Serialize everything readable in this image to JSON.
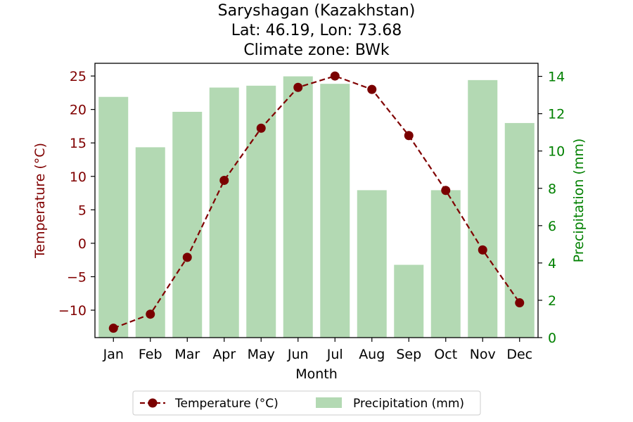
{
  "chart_data": {
    "type": "bar+line",
    "title_lines": [
      "Saryshagan (Kazakhstan)",
      "Lat: 46.19, Lon: 73.68",
      "Climate zone: BWk"
    ],
    "categories": [
      "Jan",
      "Feb",
      "Mar",
      "Apr",
      "May",
      "Jun",
      "Jul",
      "Aug",
      "Sep",
      "Oct",
      "Nov",
      "Dec"
    ],
    "xlabel": "Month",
    "series": [
      {
        "name": "Temperature (°C)",
        "type": "line",
        "axis": "left",
        "color": "#800000",
        "marker_color": "#7a0000",
        "values": [
          -12.7,
          -10.6,
          -2.1,
          9.4,
          17.2,
          23.3,
          25.0,
          23.0,
          16.1,
          7.9,
          -1.0,
          -8.9
        ]
      },
      {
        "name": "Precipitation (mm)",
        "type": "bar",
        "axis": "right",
        "color": "#b3d9b3",
        "values": [
          12.9,
          10.2,
          12.1,
          13.4,
          13.5,
          14.0,
          13.6,
          7.9,
          3.9,
          7.9,
          13.8,
          11.5
        ]
      }
    ],
    "y_left": {
      "label": "Temperature (°C)",
      "color": "#800000",
      "ylim": [
        -14.1,
        26.9
      ],
      "ticks": [
        -10,
        -5,
        0,
        5,
        10,
        15,
        20,
        25
      ],
      "tick_labels": [
        "−10",
        "−5",
        "0",
        "5",
        "10",
        "15",
        "20",
        "25"
      ]
    },
    "y_right": {
      "label": "Precipitation (mm)",
      "color": "#008000",
      "ylim": [
        0,
        14.7
      ],
      "ticks": [
        0,
        2,
        4,
        6,
        8,
        10,
        12,
        14
      ],
      "tick_labels": [
        "0",
        "2",
        "4",
        "6",
        "8",
        "10",
        "12",
        "14"
      ]
    },
    "legend": {
      "placement": "bottom-center",
      "entries": [
        "Temperature (°C)",
        "Precipitation (mm)"
      ]
    }
  }
}
